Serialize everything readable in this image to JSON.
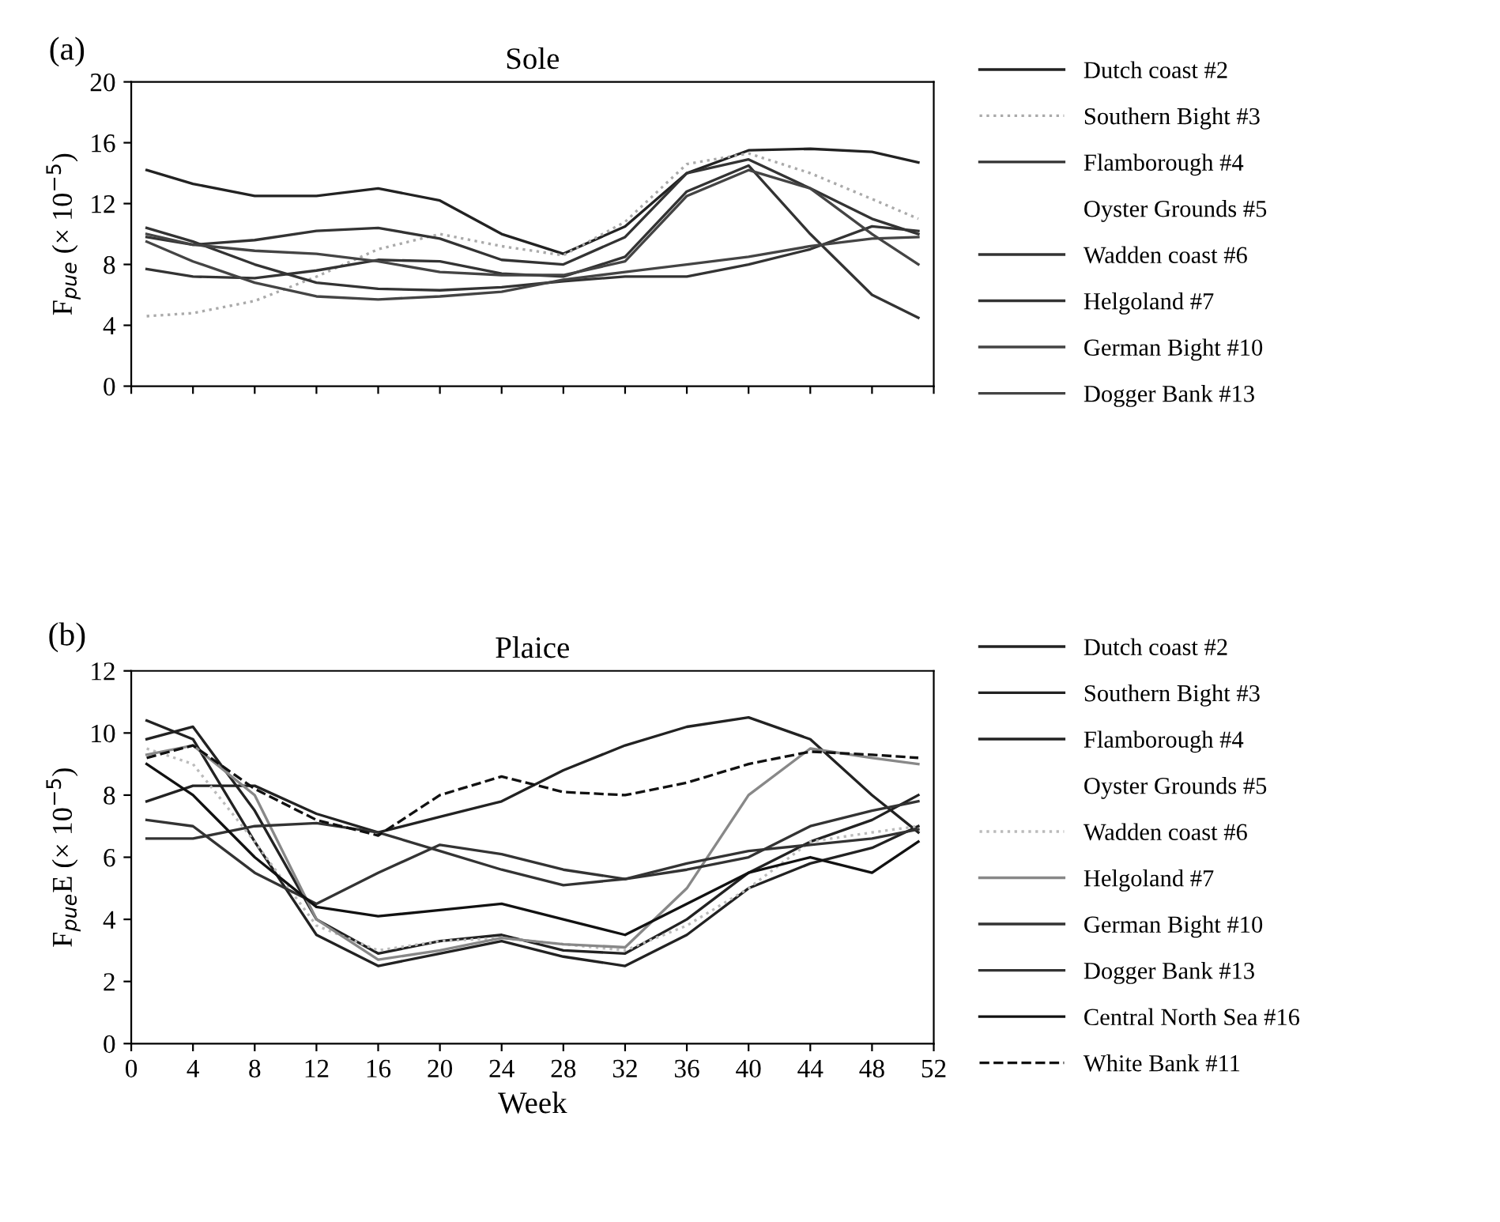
{
  "chart_data": [
    {
      "type": "line",
      "title": "Sole",
      "ylabel": "F$_{pue}$ (× 10$^{−5}$)",
      "annotations": [
        "(a)"
      ],
      "x": [
        1,
        4,
        8,
        12,
        16,
        20,
        24,
        28,
        32,
        36,
        40,
        44,
        48,
        51
      ],
      "xlim": [
        0,
        52
      ],
      "xticks": [
        0,
        4,
        8,
        12,
        16,
        20,
        24,
        28,
        32,
        36,
        40,
        44,
        48,
        52
      ],
      "ylim": [
        0,
        20
      ],
      "yticks": [
        0,
        4,
        8,
        12,
        16,
        20
      ],
      "tick_labels": "y",
      "legend": "right",
      "grid": false,
      "series": [
        {
          "name": "Dutch coast #2",
          "color": "#222222",
          "line_style": "solid",
          "values": [
            14.2,
            13.3,
            12.5,
            12.5,
            13.0,
            12.2,
            10.0,
            8.7,
            10.5,
            14.0,
            15.5,
            15.6,
            15.4,
            14.7
          ]
        },
        {
          "name": "Southern Bight #3",
          "color": "#aaaaaa",
          "line_style": "dotted",
          "values": [
            4.6,
            4.8,
            5.6,
            7.2,
            9.0,
            10.0,
            9.2,
            8.6,
            10.8,
            14.6,
            15.3,
            14.0,
            12.3,
            11.0
          ]
        },
        {
          "name": "Flamborough #4",
          "color": "#333333",
          "line_style": "solid",
          "values": [
            9.8,
            9.3,
            9.6,
            10.2,
            10.4,
            9.7,
            8.3,
            8.0,
            9.8,
            14.0,
            14.9,
            13.0,
            11.0,
            10.0
          ]
        },
        {
          "name": "Oyster Grounds #5",
          "line_style": "solid",
          "values": [
            null,
            null,
            null,
            null,
            null,
            null,
            null,
            null,
            null,
            null,
            null,
            null,
            null,
            null
          ]
        },
        {
          "name": "Wadden coast #6",
          "color": "#333333",
          "line_style": "solid",
          "values": [
            7.7,
            7.2,
            7.1,
            7.6,
            8.3,
            8.2,
            7.4,
            7.2,
            8.5,
            12.8,
            14.5,
            10.0,
            6.0,
            4.5
          ]
        },
        {
          "name": "Helgoland #7",
          "color": "#333333",
          "line_style": "solid",
          "values": [
            10.4,
            9.5,
            8.0,
            6.8,
            6.4,
            6.3,
            6.5,
            6.9,
            7.2,
            7.2,
            8.0,
            9.0,
            10.5,
            10.2
          ]
        },
        {
          "name": "German Bight #10",
          "color": "#444444",
          "line_style": "solid",
          "values": [
            9.5,
            8.2,
            6.8,
            5.9,
            5.7,
            5.9,
            6.2,
            7.0,
            7.5,
            8.0,
            8.5,
            9.2,
            9.7,
            9.8
          ]
        },
        {
          "name": "Dogger Bank #13",
          "color": "#444444",
          "line_style": "solid",
          "values": [
            10.0,
            9.3,
            8.9,
            8.7,
            8.2,
            7.5,
            7.3,
            7.3,
            8.2,
            12.5,
            14.2,
            13.0,
            10.0,
            8.0
          ]
        }
      ]
    },
    {
      "type": "line",
      "title": "Plaice",
      "xlabel": "Week",
      "ylabel": "F$_{pue}$E (× 10$^{−5}$)",
      "annotations": [
        "(b)"
      ],
      "x": [
        1,
        4,
        8,
        12,
        16,
        20,
        24,
        28,
        32,
        36,
        40,
        44,
        48,
        51
      ],
      "xlim": [
        0,
        52
      ],
      "xticks": [
        0,
        4,
        8,
        12,
        16,
        20,
        24,
        28,
        32,
        36,
        40,
        44,
        48,
        52
      ],
      "ylim": [
        0,
        12
      ],
      "yticks": [
        0,
        2,
        4,
        6,
        8,
        10,
        12
      ],
      "legend": "right",
      "grid": false,
      "series": [
        {
          "name": "Dutch coast #2",
          "color": "#222222",
          "line_style": "solid",
          "values": [
            10.4,
            9.8,
            6.5,
            3.5,
            2.5,
            2.9,
            3.3,
            2.8,
            2.5,
            3.5,
            5.0,
            5.8,
            6.3,
            7.0
          ]
        },
        {
          "name": "Southern Bight #3",
          "color": "#222222",
          "line_style": "solid",
          "values": [
            9.8,
            10.2,
            7.5,
            4.0,
            2.9,
            3.3,
            3.5,
            3.0,
            2.9,
            4.0,
            5.5,
            6.5,
            7.2,
            8.0
          ]
        },
        {
          "name": "Flamborough #4",
          "color": "#222222",
          "line_style": "solid",
          "values": [
            7.8,
            8.3,
            8.3,
            7.4,
            6.8,
            7.3,
            7.8,
            8.8,
            9.6,
            10.2,
            10.5,
            9.8,
            8.0,
            6.8
          ]
        },
        {
          "name": "Oyster Grounds #5",
          "line_style": "solid",
          "values": [
            null,
            null,
            null,
            null,
            null,
            null,
            null,
            null,
            null,
            null,
            null,
            null,
            null,
            null
          ]
        },
        {
          "name": "Wadden coast #6",
          "color": "#bbbbbb",
          "line_style": "dotted",
          "values": [
            9.5,
            9.0,
            6.5,
            3.8,
            3.0,
            3.3,
            3.4,
            3.2,
            3.0,
            3.8,
            5.0,
            6.5,
            6.8,
            7.0
          ]
        },
        {
          "name": "Helgoland #7",
          "color": "#888888",
          "line_style": "solid",
          "values": [
            9.3,
            9.6,
            8.0,
            4.0,
            2.7,
            3.0,
            3.4,
            3.2,
            3.1,
            5.0,
            8.0,
            9.5,
            9.2,
            9.0
          ]
        },
        {
          "name": "German Bight #10",
          "color": "#333333",
          "line_style": "solid",
          "values": [
            7.2,
            7.0,
            5.5,
            4.5,
            5.5,
            6.4,
            6.1,
            5.6,
            5.3,
            5.6,
            6.0,
            7.0,
            7.5,
            7.8
          ]
        },
        {
          "name": "Dogger Bank #13",
          "color": "#333333",
          "line_style": "solid",
          "values": [
            6.6,
            6.6,
            7.0,
            7.1,
            6.8,
            6.2,
            5.6,
            5.1,
            5.3,
            5.8,
            6.2,
            6.4,
            6.6,
            6.9
          ]
        },
        {
          "name": "Central North Sea #16",
          "color": "#111111",
          "line_style": "solid",
          "values": [
            9.0,
            8.0,
            6.0,
            4.4,
            4.1,
            4.3,
            4.5,
            4.0,
            3.5,
            4.5,
            5.5,
            6.0,
            5.5,
            6.5
          ]
        },
        {
          "name": "White Bank #11",
          "color": "#111111",
          "line_style": "dashed",
          "values": [
            9.2,
            9.6,
            8.2,
            7.2,
            6.7,
            8.0,
            8.6,
            8.1,
            8.0,
            8.4,
            9.0,
            9.4,
            9.3,
            9.2
          ]
        }
      ]
    }
  ]
}
